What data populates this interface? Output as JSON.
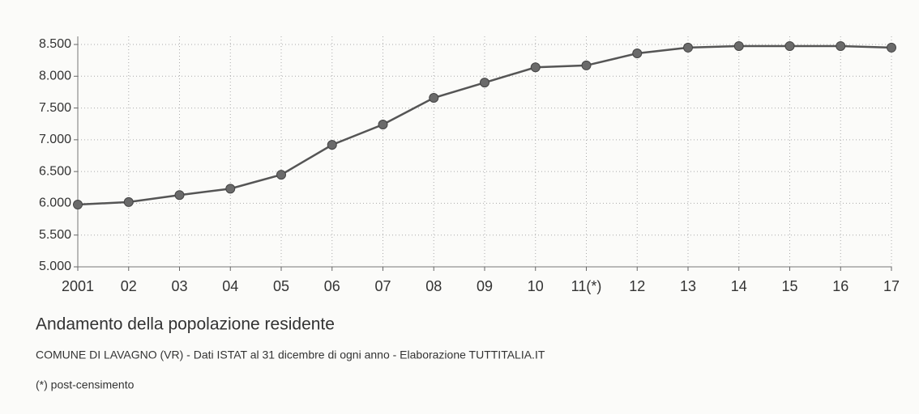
{
  "chart_data": {
    "type": "line",
    "title": "Andamento della popolazione residente",
    "subtitle": "COMUNE DI LAVAGNO (VR) - Dati ISTAT al 31 dicembre di ogni anno - Elaborazione TUTTITALIA.IT",
    "note": "(*) post-censimento",
    "categories": [
      "2001",
      "02",
      "03",
      "04",
      "05",
      "06",
      "07",
      "08",
      "09",
      "10",
      "11(*)",
      "12",
      "13",
      "14",
      "15",
      "16",
      "17"
    ],
    "values": [
      5980,
      6020,
      6130,
      6230,
      6450,
      6920,
      7240,
      7660,
      7900,
      8140,
      8170,
      8360,
      8450,
      8475,
      8475,
      8475,
      8450
    ],
    "color": "#555555",
    "ylim": [
      5000,
      8500
    ],
    "yticks": [
      {
        "value": 5000,
        "label": "5.000"
      },
      {
        "value": 5500,
        "label": "5.500"
      },
      {
        "value": 6000,
        "label": "6.000"
      },
      {
        "value": 6500,
        "label": "6.500"
      },
      {
        "value": 7000,
        "label": "7.000"
      },
      {
        "value": 7500,
        "label": "7.500"
      },
      {
        "value": 8000,
        "label": "8.000"
      },
      {
        "value": 8500,
        "label": "8.500"
      }
    ],
    "grid": true
  }
}
